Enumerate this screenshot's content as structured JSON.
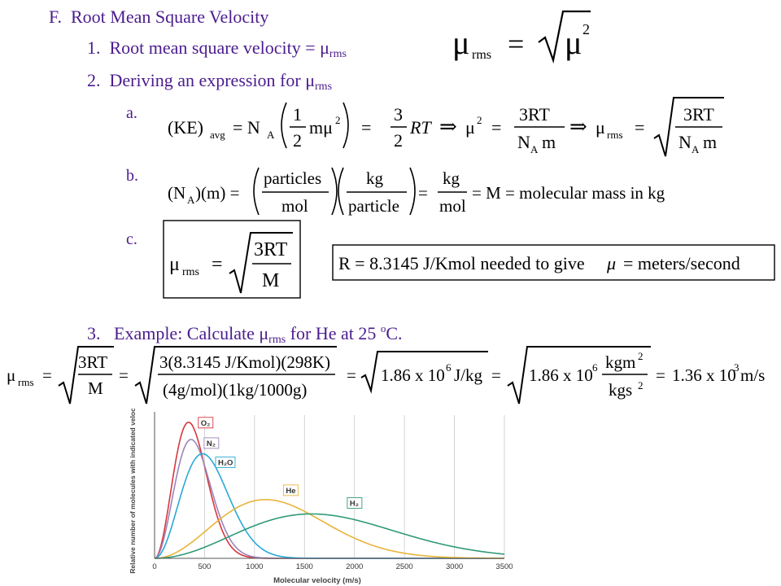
{
  "outline": {
    "f_letter": "F.",
    "f_title": "Root Mean Square Velocity",
    "item1_num": "1.",
    "item1_text": "Root mean square velocity = μ",
    "item1_sub": "rms",
    "item2_num": "2.",
    "item2_text": "Deriving an expression for μ",
    "item2_sub": "rms",
    "item3_num": "3.",
    "item3_text": "Example: Calculate μ",
    "item3_sub": "rms",
    "item3_text2": " for He at 25 ",
    "item3_sup": "o",
    "item3_text3": "C.",
    "letter_a": "a.",
    "letter_b": "b.",
    "letter_c": "c."
  },
  "equations": {
    "top_mu": "μ",
    "top_rms": "rms",
    "top_eq": "=",
    "top_mu2": "μ",
    "top_sq": "2",
    "a_ke": "(KE)",
    "a_avg": "avg",
    "a_eq1": "= N",
    "a_A1": "A",
    "a_one": "1",
    "a_two1": "2",
    "a_mmu": "mμ",
    "a_sq1": "2",
    "a_eq2": "=",
    "a_three": "3",
    "a_two2": "2",
    "a_rt": "RT",
    "a_imp1": "⇒",
    "a_mu2": "μ",
    "a_sq2": "2",
    "a_eq3": "=",
    "a_3rt1": "3RT",
    "a_nam1": "N",
    "a_A2": "A",
    "a_m1": "m",
    "a_imp2": "⇒",
    "a_mu3": "μ",
    "a_rms": "rms",
    "a_eq4": "=",
    "a_3rt2": "3RT",
    "a_nam2": "N",
    "a_A3": "A",
    "a_m2": "m",
    "b_lhs": "(N",
    "b_A": "A",
    "b_lhs2": ")(m) =",
    "b_particles": "particles",
    "b_mol1": "mol",
    "b_kg1": "kg",
    "b_particle": "particle",
    "b_eq": "=",
    "b_kg2": "kg",
    "b_mol2": "mol",
    "b_rhs": "= M = molecular mass in kg",
    "c_mu": "μ",
    "c_rms": "rms",
    "c_eq": "=",
    "c_3rt": "3RT",
    "c_m": "M",
    "r_text": "R = 8.3145 J/Kmol needed to give",
    "r_mu": "μ",
    "r_text2": "= meters/second",
    "ex_mu": "μ",
    "ex_rms": "rms",
    "ex_eq1": "=",
    "ex_3rt": "3RT",
    "ex_m": "M",
    "ex_eq2": "=",
    "ex_num": "3(8.3145 J/Kmol)(298K)",
    "ex_den": "(4g/mol)(1kg/1000g)",
    "ex_eq3": "=",
    "ex_186a": "1.86 x 10",
    "ex_6a": "6",
    "ex_jkg": "J/kg",
    "ex_eq4": "=",
    "ex_186b": "1.86 x 10",
    "ex_6b": "6",
    "ex_kgm": "kgm",
    "ex_kgm_sq": "2",
    "ex_kgs": "kgs",
    "ex_kgs_sq": "2",
    "ex_eq5": "=",
    "ex_result": "1.36 x 10",
    "ex_3": "3",
    "ex_ms": "m/s"
  },
  "colors": {
    "heading": "#4b1c8e",
    "o2": "#d9363e",
    "n2": "#9a86b8",
    "h2o": "#29a9d6",
    "he": "#e8b43a",
    "h2": "#2f9a78",
    "grid": "#c8c8c8"
  },
  "chart_data": {
    "type": "line",
    "xlabel": "Molecular velocity (m/s)",
    "ylabel": "Relative number of molecules with indicated velocity",
    "xlim": [
      0,
      3500
    ],
    "xticks": [
      "0",
      "500",
      "1000",
      "1500",
      "2000",
      "2500",
      "3000",
      "3500"
    ],
    "grid": true,
    "series": [
      {
        "name": "O₂",
        "peak_velocity": 340,
        "peak_height": 0.95,
        "color": "#d9363e"
      },
      {
        "name": "N₂",
        "peak_velocity": 365,
        "peak_height": 0.83,
        "color": "#9a86b8"
      },
      {
        "name": "H₂O",
        "peak_velocity": 480,
        "peak_height": 0.73,
        "color": "#29a9d6"
      },
      {
        "name": "He",
        "peak_velocity": 1110,
        "peak_height": 0.41,
        "color": "#e8b43a"
      },
      {
        "name": "H₂",
        "peak_velocity": 1570,
        "peak_height": 0.31,
        "color": "#2f9a78"
      }
    ]
  }
}
